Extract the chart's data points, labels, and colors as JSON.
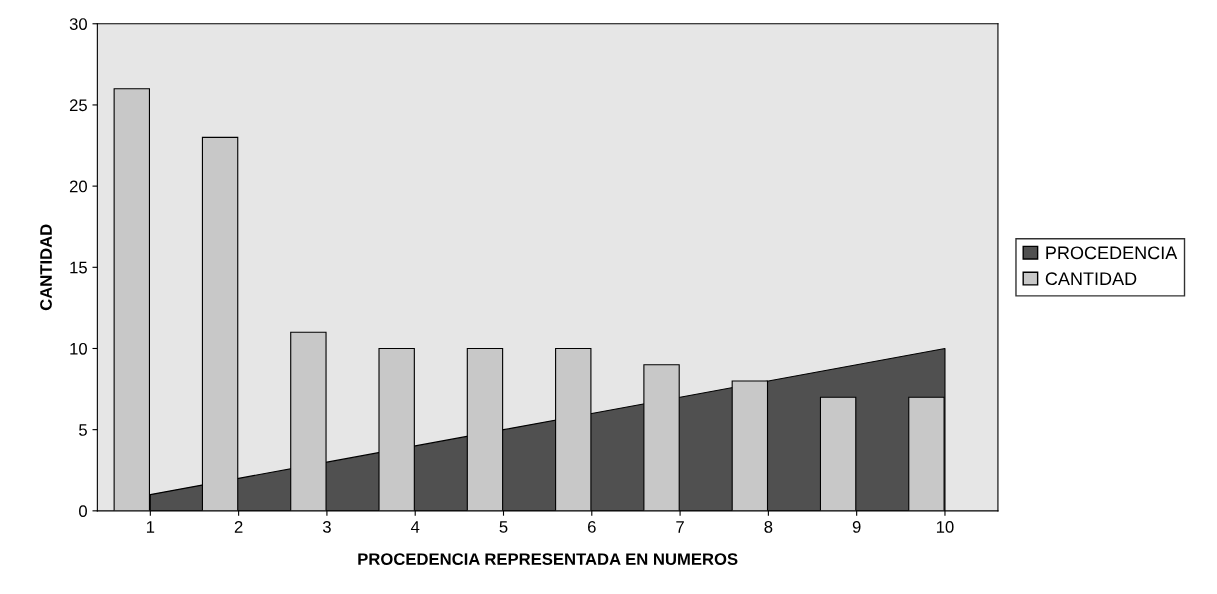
{
  "chart_data": {
    "type": "bar",
    "xlabel": "PROCEDENCIA REPRESENTADA EN NUMEROS",
    "ylabel": "CANTIDAD",
    "categories": [
      "1",
      "2",
      "3",
      "4",
      "5",
      "6",
      "7",
      "8",
      "9",
      "10"
    ],
    "series": [
      {
        "name": "PROCEDENCIA",
        "type": "area",
        "color": "#505050",
        "values": [
          1,
          2,
          3,
          4,
          5,
          6,
          7,
          8,
          9,
          10
        ]
      },
      {
        "name": "CANTIDAD",
        "color": "#c8c8c8",
        "values": [
          26,
          23,
          11,
          10,
          10,
          10,
          9,
          8,
          7,
          7
        ]
      }
    ],
    "ylim": [
      0,
      30
    ],
    "yticks": [
      0,
      5,
      10,
      15,
      20,
      25,
      30
    ],
    "grid": false,
    "legend": "right"
  }
}
